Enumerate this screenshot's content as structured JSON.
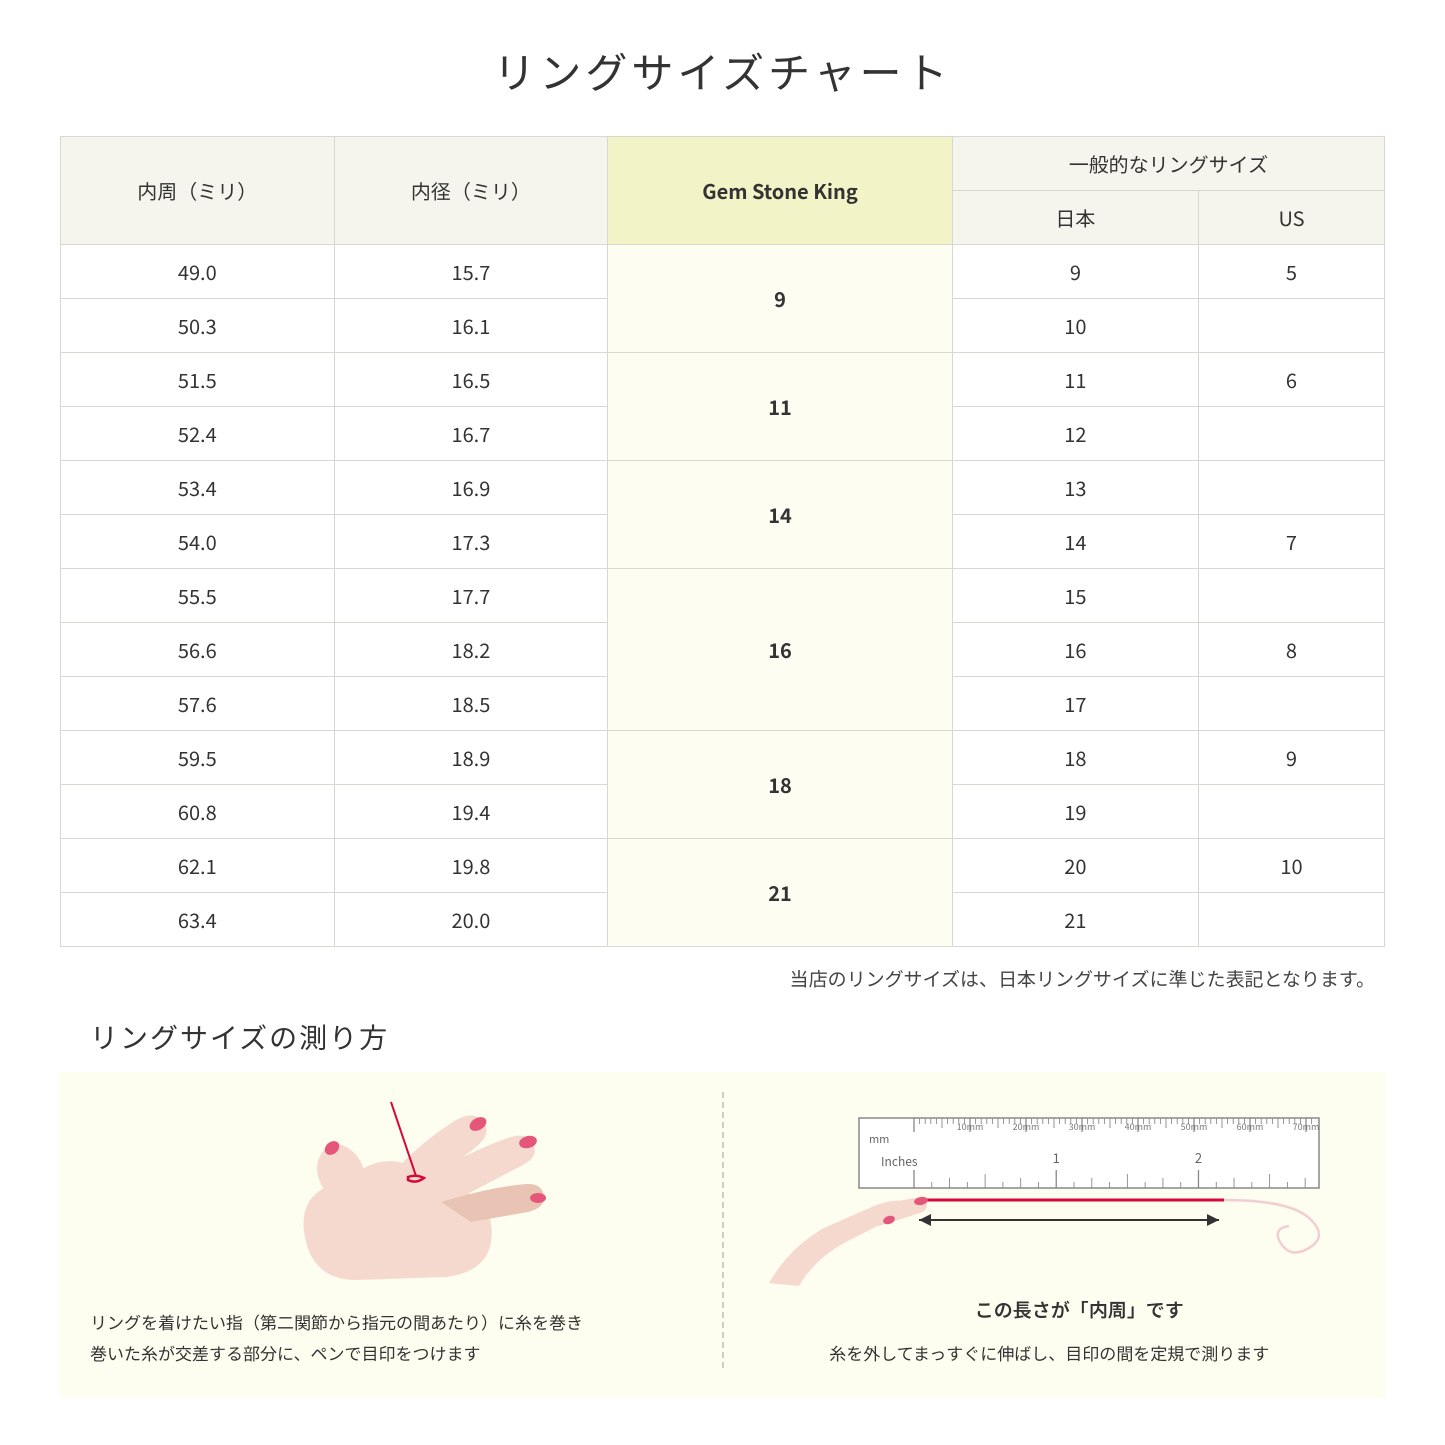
{
  "title": "リングサイズチャート",
  "table": {
    "headers": {
      "circumference": "内周（ミリ）",
      "diameter": "内径（ミリ）",
      "gsk": "Gem Stone King",
      "common": "一般的なリングサイズ",
      "japan": "日本",
      "us": "US"
    },
    "groups": [
      {
        "gsk": "9",
        "rows": [
          {
            "c": "49.0",
            "d": "15.7",
            "jp": "9",
            "us": "5"
          },
          {
            "c": "50.3",
            "d": "16.1",
            "jp": "10",
            "us": ""
          }
        ]
      },
      {
        "gsk": "11",
        "rows": [
          {
            "c": "51.5",
            "d": "16.5",
            "jp": "11",
            "us": "6"
          },
          {
            "c": "52.4",
            "d": "16.7",
            "jp": "12",
            "us": ""
          }
        ]
      },
      {
        "gsk": "14",
        "rows": [
          {
            "c": "53.4",
            "d": "16.9",
            "jp": "13",
            "us": ""
          },
          {
            "c": "54.0",
            "d": "17.3",
            "jp": "14",
            "us": "7"
          }
        ]
      },
      {
        "gsk": "16",
        "rows": [
          {
            "c": "55.5",
            "d": "17.7",
            "jp": "15",
            "us": ""
          },
          {
            "c": "56.6",
            "d": "18.2",
            "jp": "16",
            "us": "8"
          },
          {
            "c": "57.6",
            "d": "18.5",
            "jp": "17",
            "us": ""
          }
        ]
      },
      {
        "gsk": "18",
        "rows": [
          {
            "c": "59.5",
            "d": "18.9",
            "jp": "18",
            "us": "9"
          },
          {
            "c": "60.8",
            "d": "19.4",
            "jp": "19",
            "us": ""
          }
        ]
      },
      {
        "gsk": "21",
        "rows": [
          {
            "c": "62.1",
            "d": "19.8",
            "jp": "20",
            "us": "10"
          },
          {
            "c": "63.4",
            "d": "20.0",
            "jp": "21",
            "us": ""
          }
        ]
      }
    ],
    "colors": {
      "header_bg": "#f5f5ee",
      "gsk_header_bg": "#f3f3c8",
      "gsk_cell_bg": "#fdfdf2",
      "border": "#d8d8d0",
      "cell_bg": "#ffffff"
    }
  },
  "note": "当店のリングサイズは、日本リングサイズに準じた表記となります。",
  "howto": {
    "title": "リングサイズの測り方",
    "left_caption_1": "リングを着けたい指（第二関節から指元の間あたり）に糸を巻き",
    "left_caption_2": "巻いた糸が交差する部分に、ペンで目印をつけます",
    "ruler_label": "この長さが「内周」です",
    "right_caption": "糸を外してまっすぐに伸ばし、目印の間を定規で測ります",
    "ruler_marks": [
      "10mm",
      "20mm",
      "30mm",
      "40mm",
      "50mm",
      "60mm",
      "70mm"
    ],
    "ruler_unit_mm": "mm",
    "ruler_unit_in": "Inches",
    "ruler_in_marks": [
      "1",
      "2"
    ],
    "colors": {
      "panel_bg": "#fdfdf0",
      "skin": "#f6d9ce",
      "skin_dark": "#e9c4b5",
      "nail": "#e4567a",
      "thread": "#d4093a",
      "ruler_border": "#888888",
      "ruler_tick": "#888888",
      "arc": "#f2cdd4"
    }
  }
}
